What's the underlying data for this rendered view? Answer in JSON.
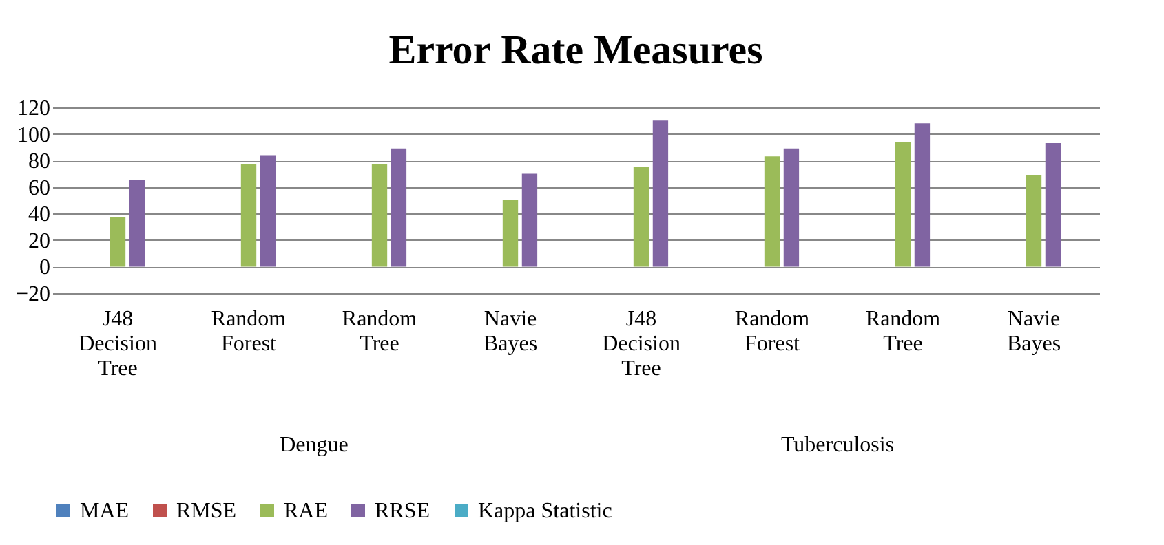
{
  "chart_data": {
    "type": "bar",
    "title": "Error Rate Measures",
    "categories": [
      "J48 Decision Tree",
      "Random Forest",
      "Random Tree",
      "Navie Bayes",
      "J48 Decision Tree",
      "Random Forest",
      "Random Tree",
      "Navie Bayes"
    ],
    "series": [
      {
        "name": "MAE",
        "color": "#4f81bd",
        "values": [
          0,
          0,
          0,
          0,
          0,
          0,
          0,
          0
        ]
      },
      {
        "name": "RMSE",
        "color": "#c0504d",
        "values": [
          0,
          0,
          0,
          0,
          0,
          0,
          0,
          0
        ]
      },
      {
        "name": "RAE",
        "color": "#9bbb59",
        "values": [
          37,
          77,
          77,
          50,
          75,
          83,
          94,
          69
        ]
      },
      {
        "name": "RRSE",
        "color": "#8064a2",
        "values": [
          65,
          84,
          89,
          70,
          110,
          89,
          108,
          93
        ]
      },
      {
        "name": "Kappa Statistic",
        "color": "#4bacc6",
        "values": [
          0,
          0,
          0,
          0,
          0,
          0,
          0,
          0
        ]
      }
    ],
    "annotations": [
      "Dengue",
      "Tuberculosis"
    ],
    "ylim": [
      -20,
      120
    ],
    "yticks": [
      -20,
      0,
      20,
      40,
      60,
      80,
      100,
      120
    ],
    "grid": "y",
    "legend": "bottom"
  }
}
